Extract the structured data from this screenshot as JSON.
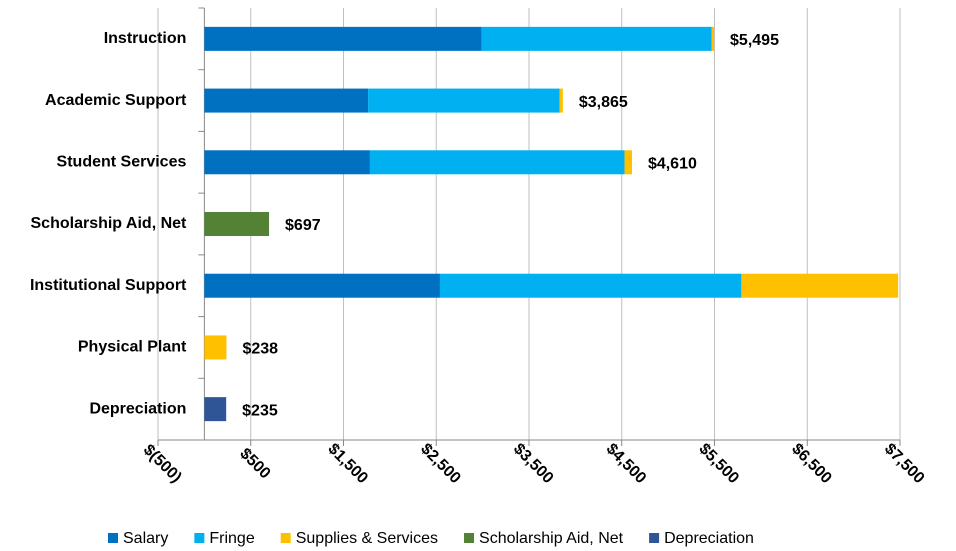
{
  "chart_data": {
    "type": "stacked-bar-horizontal",
    "categories": [
      "Instruction",
      "Academic Support",
      "Student Services",
      "Scholarship Aid, Net",
      "Institutional Support",
      "Physical Plant",
      "Depreciation"
    ],
    "series": [
      {
        "name": "Salary",
        "color": "#0070c0",
        "values": [
          2990,
          1765,
          1785,
          null,
          2540,
          null,
          null
        ]
      },
      {
        "name": "Fringe",
        "color": "#00b0f0",
        "values": [
          2480,
          2065,
          2745,
          null,
          3250,
          null,
          null
        ]
      },
      {
        "name": "Supplies & Services",
        "color": "#ffc000",
        "values": [
          25,
          35,
          80,
          null,
          1690,
          238,
          null
        ]
      },
      {
        "name": "Scholarship Aid, Net",
        "color": "#548235",
        "values": [
          null,
          null,
          null,
          697,
          null,
          null,
          null
        ]
      },
      {
        "name": "Depreciation",
        "color": "#2f5597",
        "values": [
          null,
          null,
          null,
          null,
          null,
          null,
          235
        ]
      }
    ],
    "totals": [
      5495,
      3865,
      4610,
      697,
      null,
      238,
      235
    ],
    "total_labels": [
      "$5,495",
      "$3,865",
      "$4,610",
      "$697",
      null,
      "$238",
      "$235"
    ],
    "xlim": [
      -500,
      7500
    ],
    "xticks": [
      {
        "value": -500,
        "label": "$(500)"
      },
      {
        "value": 500,
        "label": "$500"
      },
      {
        "value": 1500,
        "label": "$1,500"
      },
      {
        "value": 2500,
        "label": "$2,500"
      },
      {
        "value": 3500,
        "label": "$3,500"
      },
      {
        "value": 4500,
        "label": "$4,500"
      },
      {
        "value": 5500,
        "label": "$5,500"
      },
      {
        "value": 6500,
        "label": "$6,500"
      },
      {
        "value": 7500,
        "label": "$7,500"
      }
    ],
    "grid": true,
    "legend": "bottom"
  }
}
